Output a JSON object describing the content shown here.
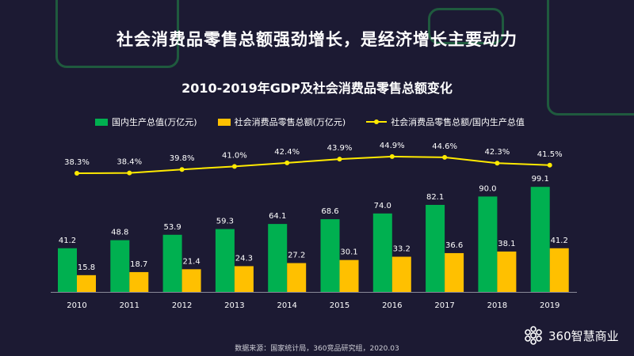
{
  "headline": "社会消费品零售总额强劲增长，是经济增长主要动力",
  "source": "数据来源：国家统计局，360竞品研究组，2020.03",
  "logo": {
    "text": "360智慧商业",
    "icon": "flower-logo-icon"
  },
  "colors": {
    "background": "#1c1a33",
    "gdp": "#00b050",
    "retail": "#ffc000",
    "ratio": "#ffea00",
    "text": "#ffffff"
  },
  "chart_data": {
    "type": "bar",
    "title": "2010-2019年GDP及社会消费品零售总额变化",
    "xlabel": "",
    "ylabel": "",
    "grid": false,
    "legend_position": "top",
    "categories": [
      "2010",
      "2011",
      "2012",
      "2013",
      "2014",
      "2015",
      "2016",
      "2017",
      "2018",
      "2019"
    ],
    "series": [
      {
        "name": "国内生产总值(万亿元)",
        "type": "bar",
        "values": [
          41.2,
          48.8,
          53.9,
          59.3,
          64.1,
          68.6,
          74.0,
          82.1,
          90.0,
          99.1
        ],
        "labels": [
          "41.2",
          "48.8",
          "53.9",
          "59.3",
          "64.1",
          "68.6",
          "74.0",
          "82.1",
          "90.0",
          "99.1"
        ]
      },
      {
        "name": "社会消费品零售总额(万亿元)",
        "type": "bar",
        "values": [
          15.8,
          18.7,
          21.4,
          24.3,
          27.2,
          30.1,
          33.2,
          36.6,
          38.1,
          41.2
        ],
        "labels": [
          "15.8",
          "18.7",
          "21.4",
          "24.3",
          "27.2",
          "30.1",
          "33.2",
          "36.6",
          "38.1",
          "41.2"
        ]
      },
      {
        "name": "社会消费品零售总额/国内生产总值",
        "type": "line",
        "values": [
          38.3,
          38.4,
          39.8,
          41.0,
          42.4,
          43.9,
          44.9,
          44.6,
          42.3,
          41.5
        ],
        "labels": [
          "38.3%",
          "38.4%",
          "39.8%",
          "41.0%",
          "42.4%",
          "43.9%",
          "44.9%",
          "44.6%",
          "42.3%",
          "41.5%"
        ]
      }
    ]
  }
}
